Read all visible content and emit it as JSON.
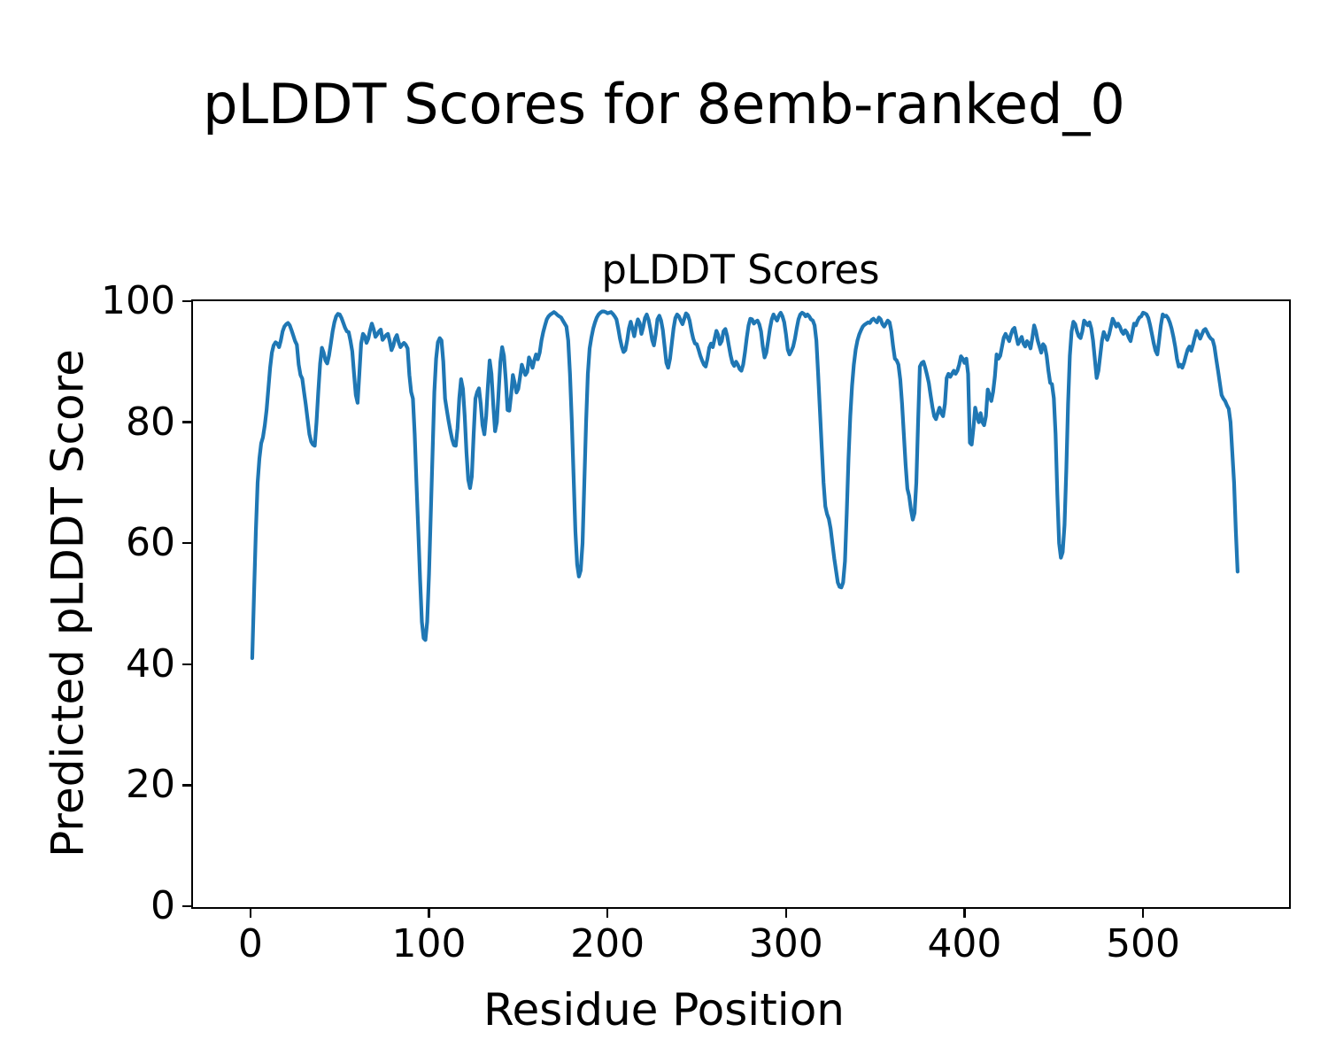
{
  "figure": {
    "suptitle": "pLDDT Scores for 8emb-ranked_0",
    "background_color": "#ffffff",
    "text_color": "#000000"
  },
  "chart_data": {
    "type": "line",
    "title": "pLDDT Scores",
    "xlabel": "Residue Position",
    "ylabel": "Predicted pLDDT Score",
    "x_ticks": [
      0,
      100,
      200,
      300,
      400,
      500
    ],
    "y_ticks": [
      0,
      20,
      40,
      60,
      80,
      100
    ],
    "xlim": [
      -32.2,
      581.3
    ],
    "ylim": [
      0,
      100
    ],
    "grid": false,
    "legend": null,
    "line_color": "#1f77b4",
    "line_width": 4.2,
    "x_start": 1,
    "x_step": 1,
    "values": [
      41,
      52,
      62,
      70,
      74,
      76.5,
      77.5,
      79.5,
      82,
      85.5,
      89,
      91.5,
      92.7,
      93.2,
      93,
      92.4,
      93.5,
      95,
      95.8,
      96.2,
      96.4,
      96,
      95.2,
      94.3,
      93.4,
      92.8,
      89.5,
      87.8,
      87.2,
      85,
      82.9,
      80.5,
      78,
      76.8,
      76.3,
      76.1,
      80,
      85,
      89.7,
      92.3,
      91.5,
      90.2,
      89.7,
      91,
      93,
      95,
      96.5,
      97.5,
      97.9,
      97.8,
      97.2,
      96.4,
      95.6,
      95,
      94.9,
      93.5,
      91.7,
      88,
      84.5,
      83.2,
      88,
      93,
      94.6,
      94.2,
      93.1,
      93.8,
      95.2,
      96.3,
      95.4,
      94.1,
      94.5,
      95,
      95.3,
      93.6,
      94,
      94.4,
      94.6,
      93.4,
      91.9,
      92.6,
      93.8,
      94.4,
      93.2,
      92.4,
      92.8,
      93.1,
      92.8,
      92.2,
      87.8,
      85,
      83.9,
      78,
      70,
      62,
      54,
      47,
      44.3,
      44,
      47,
      55,
      65,
      75,
      85,
      90.5,
      93.2,
      93.9,
      93.5,
      90,
      83.9,
      82,
      80.2,
      78.5,
      77.1,
      76.2,
      76.1,
      79,
      84,
      87.1,
      85.5,
      81,
      75,
      70.5,
      69.1,
      71,
      78,
      83.9,
      85,
      85.6,
      83,
      79.5,
      78,
      81,
      86,
      90.2,
      88,
      83,
      78.5,
      80,
      85,
      90,
      92.4,
      91,
      87,
      82,
      81.9,
      84.5,
      87.8,
      86.5,
      84.9,
      85.5,
      87.5,
      89.5,
      88.6,
      87.8,
      88.3,
      90.7,
      90,
      89,
      90.2,
      91.2,
      90.4,
      91.5,
      93.5,
      94.9,
      96,
      97,
      97.5,
      97.8,
      98,
      98.2,
      98,
      97.7,
      97.5,
      97.3,
      96.8,
      96.3,
      95.8,
      93.5,
      88,
      80,
      71,
      62,
      56.5,
      54.5,
      55.5,
      60,
      70,
      80,
      88,
      92.2,
      94,
      95.5,
      96.5,
      97.3,
      97.8,
      98.1,
      98.3,
      98.3,
      98.2,
      98,
      98.1,
      98.2,
      97.9,
      97.5,
      97,
      95.5,
      93.8,
      92.5,
      91.6,
      91.9,
      93.5,
      95.5,
      96.6,
      95.4,
      94.2,
      95.8,
      97,
      96.4,
      94.6,
      95.7,
      97.2,
      97.8,
      96.9,
      95.4,
      93.6,
      92.7,
      94.5,
      97,
      97.6,
      96.8,
      95.2,
      92.5,
      89.8,
      89,
      90.5,
      93,
      95.5,
      97.2,
      97.8,
      97.5,
      96.8,
      96.2,
      97.1,
      98,
      97.7,
      96.8,
      95.1,
      93.8,
      93,
      92.9,
      92,
      91,
      90.2,
      89.5,
      89.2,
      90.5,
      92.3,
      93,
      92.4,
      93.8,
      95.1,
      94.4,
      92.9,
      93.4,
      95,
      95.4,
      94.3,
      92.6,
      91,
      89.8,
      89.3,
      90,
      89.5,
      88.8,
      88.5,
      89.5,
      91.5,
      94,
      96,
      97.1,
      97,
      96.3,
      96.6,
      96.8,
      96.2,
      95,
      92.5,
      90.7,
      91.5,
      93.5,
      95.5,
      97,
      97.8,
      97.2,
      96.8,
      97.6,
      98.1,
      97.5,
      96.5,
      94.5,
      92,
      91.2,
      91.8,
      92.5,
      93.8,
      95.5,
      97,
      97.8,
      98.1,
      97.9,
      97.5,
      97.8,
      97.5,
      97,
      96.8,
      96,
      93.5,
      88,
      82,
      76,
      70,
      66.1,
      64.8,
      64,
      62.4,
      60,
      57.5,
      55.5,
      53.5,
      52.8,
      52.7,
      53.5,
      57,
      65,
      74,
      81,
      86,
      89.5,
      92,
      93.5,
      94.5,
      95.2,
      95.8,
      96.1,
      96.3,
      96.5,
      96.4,
      96.9,
      97.1,
      96.8,
      96.5,
      97.3,
      97,
      96.2,
      95.8,
      96.3,
      96.8,
      96.5,
      95,
      92.5,
      90.5,
      90.2,
      89.5,
      87,
      83,
      78,
      73,
      69,
      67.8,
      65.5,
      63.9,
      65,
      70,
      80,
      89.2,
      89.8,
      90,
      89,
      87.8,
      86.5,
      84.5,
      82.5,
      81,
      80.5,
      81.5,
      82.4,
      81.5,
      81,
      83,
      87.3,
      88,
      87.5,
      88,
      88.5,
      88,
      88.5,
      89.5,
      90.9,
      90.5,
      89.8,
      90.5,
      88,
      76.6,
      76.3,
      79,
      82.4,
      81,
      80,
      81.5,
      80,
      79.5,
      81,
      85.4,
      84.5,
      83.5,
      85,
      87.5,
      91.2,
      90.5,
      91,
      92.5,
      94,
      94.6,
      94,
      93.4,
      94.5,
      95.3,
      95.6,
      94.2,
      92.9,
      93.5,
      94.1,
      93,
      92.5,
      93.4,
      93,
      92.2,
      94,
      96,
      95,
      93.5,
      92.5,
      91.5,
      92.9,
      92.5,
      91,
      88.5,
      86.5,
      86.3,
      84,
      78,
      68,
      60,
      57.6,
      58.5,
      63,
      72,
      83,
      91,
      95,
      96.6,
      96.2,
      95,
      94.2,
      93.9,
      95,
      96.8,
      96.4,
      96,
      96.5,
      95.5,
      93.5,
      90.5,
      87.3,
      88.5,
      91,
      93.5,
      94.9,
      94.2,
      93.6,
      94.5,
      95.8,
      97.1,
      96.5,
      95.8,
      96.3,
      95.8,
      95,
      94.6,
      95.2,
      94.8,
      94,
      93.4,
      94.8,
      96.3,
      96,
      96.8,
      97.3,
      97.5,
      98.1,
      98,
      97.8,
      97.2,
      96,
      94.5,
      93,
      91.8,
      91.2,
      93.5,
      96,
      97.8,
      97.5,
      97.6,
      97.2,
      96.5,
      95.5,
      94.1,
      92.5,
      90.5,
      89.2,
      89.5,
      89,
      89.8,
      91,
      92,
      92.5,
      91.8,
      92.8,
      94,
      95.1,
      94.5,
      93.8,
      94.5,
      95.2,
      95.4,
      94.8,
      94.2,
      93.8,
      93.6,
      92.5,
      90.5,
      88.5,
      86.5,
      84.5,
      83.9,
      83.5,
      82.8,
      82.2,
      80,
      75,
      70,
      62,
      55.3
    ]
  }
}
